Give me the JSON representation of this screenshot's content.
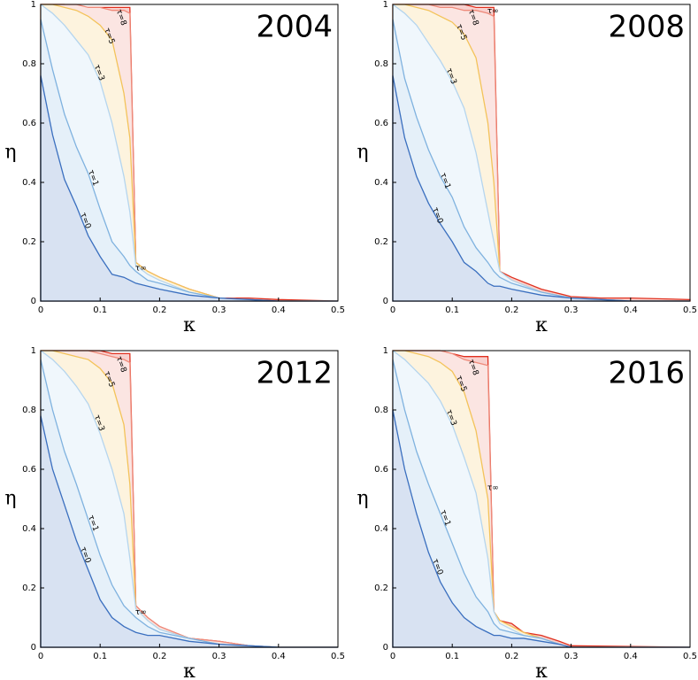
{
  "chart_data": [
    {
      "type": "area",
      "title": "2004",
      "x_label": "κ",
      "y_label": "η",
      "xlim": [
        0,
        0.5
      ],
      "ylim": [
        0,
        1
      ],
      "xticks": [
        0,
        0.1,
        0.2,
        0.3,
        0.4,
        0.5
      ],
      "yticks": [
        0,
        0.2,
        0.4,
        0.6,
        0.8,
        1
      ],
      "x": [
        0,
        0.02,
        0.04,
        0.06,
        0.08,
        0.1,
        0.12,
        0.14,
        0.15,
        0.16,
        0.18,
        0.2,
        0.25,
        0.3,
        0.35,
        0.4,
        0.5
      ],
      "series": [
        {
          "name": "τ∞",
          "color": "#e0301e",
          "values": [
            1,
            1,
            1,
            0.99,
            0.99,
            0.99,
            0.99,
            0.99,
            0.99,
            0.13,
            0.1,
            0.08,
            0.04,
            0.01,
            0.01,
            0.005,
            0
          ]
        },
        {
          "name": "τ=8",
          "color": "#ee8a7a",
          "values": [
            1,
            1,
            1,
            1,
            0.99,
            0.99,
            0.98,
            0.98,
            0.97,
            0.13,
            0.1,
            0.08,
            0.04,
            0.01,
            0.005,
            0,
            0
          ]
        },
        {
          "name": "τ=5",
          "color": "#f3c35a",
          "values": [
            1,
            1,
            0.99,
            0.98,
            0.96,
            0.93,
            0.88,
            0.7,
            0.55,
            0.13,
            0.1,
            0.08,
            0.04,
            0.01,
            0.005,
            0,
            0
          ]
        },
        {
          "name": "τ=3",
          "color": "#b5d5ee",
          "values": [
            1,
            0.97,
            0.93,
            0.88,
            0.83,
            0.74,
            0.6,
            0.42,
            0.3,
            0.12,
            0.09,
            0.07,
            0.03,
            0.01,
            0.005,
            0,
            0
          ]
        },
        {
          "name": "τ=1",
          "color": "#7fb2df",
          "values": [
            0.95,
            0.78,
            0.63,
            0.52,
            0.43,
            0.31,
            0.2,
            0.15,
            0.12,
            0.1,
            0.07,
            0.06,
            0.03,
            0.01,
            0.005,
            0,
            0
          ]
        },
        {
          "name": "τ=0",
          "color": "#3a6fbf",
          "values": [
            0.76,
            0.56,
            0.41,
            0.32,
            0.22,
            0.15,
            0.09,
            0.08,
            0.07,
            0.06,
            0.05,
            0.04,
            0.02,
            0.01,
            0.005,
            0,
            0
          ]
        }
      ]
    },
    {
      "type": "area",
      "title": "2008",
      "x_label": "κ",
      "y_label": "η",
      "xlim": [
        0,
        0.5
      ],
      "ylim": [
        0,
        1
      ],
      "xticks": [
        0,
        0.1,
        0.2,
        0.3,
        0.4,
        0.5
      ],
      "yticks": [
        0,
        0.2,
        0.4,
        0.6,
        0.8,
        1
      ],
      "x": [
        0,
        0.02,
        0.04,
        0.06,
        0.08,
        0.1,
        0.12,
        0.14,
        0.16,
        0.17,
        0.18,
        0.2,
        0.25,
        0.3,
        0.35,
        0.4,
        0.5
      ],
      "series": [
        {
          "name": "τ∞",
          "color": "#e0301e",
          "values": [
            1,
            1,
            1,
            1,
            1,
            1,
            1,
            0.99,
            0.99,
            0.99,
            0.1,
            0.08,
            0.04,
            0.015,
            0.01,
            0.01,
            0.005
          ]
        },
        {
          "name": "τ=8",
          "color": "#ee8a7a",
          "values": [
            1,
            1,
            1,
            1,
            0.99,
            0.99,
            0.98,
            0.98,
            0.97,
            0.96,
            0.1,
            0.07,
            0.03,
            0.01,
            0.005,
            0,
            0
          ]
        },
        {
          "name": "τ=5",
          "color": "#f3c35a",
          "values": [
            1,
            1,
            0.99,
            0.98,
            0.96,
            0.94,
            0.9,
            0.82,
            0.6,
            0.4,
            0.1,
            0.07,
            0.03,
            0.01,
            0.005,
            0,
            0
          ]
        },
        {
          "name": "τ=3",
          "color": "#b5d5ee",
          "values": [
            1,
            0.97,
            0.93,
            0.87,
            0.81,
            0.74,
            0.65,
            0.5,
            0.3,
            0.2,
            0.1,
            0.07,
            0.03,
            0.01,
            0.005,
            0,
            0
          ]
        },
        {
          "name": "τ=1",
          "color": "#7fb2df",
          "values": [
            0.95,
            0.75,
            0.62,
            0.51,
            0.42,
            0.35,
            0.25,
            0.18,
            0.13,
            0.1,
            0.08,
            0.06,
            0.03,
            0.01,
            0.005,
            0,
            0
          ]
        },
        {
          "name": "τ=0",
          "color": "#3a6fbf",
          "values": [
            0.76,
            0.55,
            0.42,
            0.33,
            0.26,
            0.2,
            0.13,
            0.1,
            0.06,
            0.05,
            0.05,
            0.04,
            0.02,
            0.01,
            0.005,
            0,
            0
          ]
        }
      ]
    },
    {
      "type": "area",
      "title": "2012",
      "x_label": "κ",
      "y_label": "η",
      "xlim": [
        0,
        0.5
      ],
      "ylim": [
        0,
        1
      ],
      "xticks": [
        0,
        0.1,
        0.2,
        0.3,
        0.4,
        0.5
      ],
      "yticks": [
        0,
        0.2,
        0.4,
        0.6,
        0.8,
        1
      ],
      "x": [
        0,
        0.02,
        0.04,
        0.06,
        0.08,
        0.1,
        0.12,
        0.14,
        0.15,
        0.16,
        0.18,
        0.2,
        0.25,
        0.3,
        0.35,
        0.4,
        0.5
      ],
      "series": [
        {
          "name": "τ∞",
          "color": "#e0301e",
          "values": [
            1,
            1,
            1,
            1,
            1,
            1,
            0.99,
            0.99,
            0.99,
            0.14,
            0.1,
            0.07,
            0.03,
            0.02,
            0.005,
            0,
            0
          ]
        },
        {
          "name": "τ=8",
          "color": "#ee8a7a",
          "values": [
            1,
            1,
            1,
            1,
            1,
            0.99,
            0.98,
            0.97,
            0.96,
            0.14,
            0.1,
            0.07,
            0.03,
            0.02,
            0.005,
            0,
            0
          ]
        },
        {
          "name": "τ=5",
          "color": "#f3c35a",
          "values": [
            1,
            1,
            0.99,
            0.98,
            0.97,
            0.94,
            0.89,
            0.75,
            0.55,
            0.13,
            0.09,
            0.06,
            0.03,
            0.01,
            0.005,
            0,
            0
          ]
        },
        {
          "name": "τ=3",
          "color": "#b5d5ee",
          "values": [
            1,
            0.97,
            0.93,
            0.88,
            0.82,
            0.72,
            0.6,
            0.45,
            0.3,
            0.13,
            0.09,
            0.06,
            0.03,
            0.01,
            0.005,
            0,
            0
          ]
        },
        {
          "name": "τ=1",
          "color": "#7fb2df",
          "values": [
            0.97,
            0.8,
            0.66,
            0.55,
            0.43,
            0.31,
            0.21,
            0.14,
            0.12,
            0.1,
            0.07,
            0.05,
            0.03,
            0.01,
            0.005,
            0,
            0
          ]
        },
        {
          "name": "τ=0",
          "color": "#3a6fbf",
          "values": [
            0.78,
            0.6,
            0.48,
            0.36,
            0.26,
            0.16,
            0.1,
            0.07,
            0.06,
            0.05,
            0.04,
            0.04,
            0.02,
            0.01,
            0.005,
            0,
            0
          ]
        }
      ]
    },
    {
      "type": "area",
      "title": "2016",
      "x_label": "κ",
      "y_label": "η",
      "xlim": [
        0,
        0.5
      ],
      "ylim": [
        0,
        1
      ],
      "xticks": [
        0,
        0.1,
        0.2,
        0.3,
        0.4,
        0.5
      ],
      "yticks": [
        0,
        0.2,
        0.4,
        0.6,
        0.8,
        1
      ],
      "x": [
        0,
        0.02,
        0.04,
        0.06,
        0.08,
        0.1,
        0.12,
        0.14,
        0.16,
        0.17,
        0.18,
        0.2,
        0.22,
        0.25,
        0.28,
        0.3,
        0.5
      ],
      "series": [
        {
          "name": "τ∞",
          "color": "#e0301e",
          "values": [
            1,
            1,
            1,
            1,
            1,
            0.99,
            0.98,
            0.98,
            0.98,
            0.12,
            0.09,
            0.08,
            0.05,
            0.04,
            0.02,
            0.005,
            0
          ]
        },
        {
          "name": "τ=8",
          "color": "#ee8a7a",
          "values": [
            1,
            1,
            1,
            1,
            1,
            0.99,
            0.97,
            0.96,
            0.95,
            0.12,
            0.09,
            0.07,
            0.05,
            0.03,
            0.01,
            0,
            0
          ]
        },
        {
          "name": "τ=5",
          "color": "#f3c35a",
          "values": [
            1,
            1,
            0.99,
            0.98,
            0.96,
            0.93,
            0.86,
            0.73,
            0.5,
            0.12,
            0.09,
            0.07,
            0.05,
            0.03,
            0.01,
            0,
            0
          ]
        },
        {
          "name": "τ=3",
          "color": "#b5d5ee",
          "values": [
            1,
            0.97,
            0.93,
            0.89,
            0.83,
            0.75,
            0.64,
            0.52,
            0.3,
            0.12,
            0.08,
            0.06,
            0.04,
            0.03,
            0.01,
            0,
            0
          ]
        },
        {
          "name": "τ=1",
          "color": "#7fb2df",
          "values": [
            0.97,
            0.8,
            0.66,
            0.55,
            0.45,
            0.35,
            0.25,
            0.17,
            0.12,
            0.08,
            0.06,
            0.05,
            0.04,
            0.03,
            0.01,
            0,
            0
          ]
        },
        {
          "name": "τ=0",
          "color": "#3a6fbf",
          "values": [
            0.8,
            0.6,
            0.45,
            0.32,
            0.22,
            0.15,
            0.1,
            0.07,
            0.05,
            0.04,
            0.04,
            0.03,
            0.03,
            0.02,
            0.01,
            0,
            0
          ]
        }
      ]
    }
  ]
}
